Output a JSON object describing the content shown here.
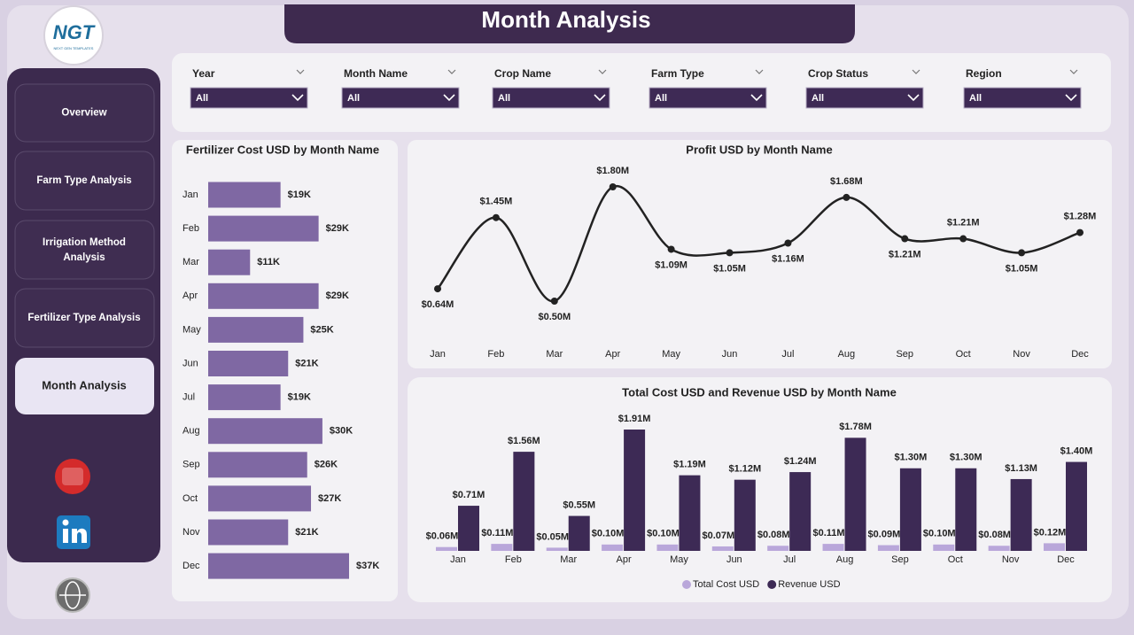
{
  "header": {
    "logo": "NGT",
    "logo_sub": "NEXT GEN TEMPLATES",
    "title": "Month Analysis"
  },
  "nav": [
    "Overview",
    "Farm Type Analysis",
    "Irrigation Method Analysis",
    "Fertilizer Type Analysis",
    "Month Analysis"
  ],
  "active_nav": 4,
  "filters": [
    {
      "label": "Year",
      "value": "All"
    },
    {
      "label": "Month Name",
      "value": "All"
    },
    {
      "label": "Crop Name",
      "value": "All"
    },
    {
      "label": "Farm Type",
      "value": "All"
    },
    {
      "label": "Crop Status",
      "value": "All"
    },
    {
      "label": "Region",
      "value": "All"
    }
  ],
  "chart_data": [
    {
      "type": "hbar",
      "title": "Fertilizer Cost USD by Month Name",
      "categories": [
        "Jan",
        "Feb",
        "Mar",
        "Apr",
        "May",
        "Jun",
        "Jul",
        "Aug",
        "Sep",
        "Oct",
        "Nov",
        "Dec"
      ],
      "values": [
        19000,
        29000,
        11000,
        29000,
        25000,
        21000,
        19000,
        30000,
        26000,
        27000,
        21000,
        37000
      ],
      "value_labels": [
        "$19K",
        "$29K",
        "$11K",
        "$29K",
        "$25K",
        "$21K",
        "$19K",
        "$30K",
        "$26K",
        "$27K",
        "$21K",
        "$37K"
      ],
      "color": "#7f68a3"
    },
    {
      "type": "line",
      "title": "Profit USD by Month Name",
      "categories": [
        "Jan",
        "Feb",
        "Mar",
        "Apr",
        "May",
        "Jun",
        "Jul",
        "Aug",
        "Sep",
        "Oct",
        "Nov",
        "Dec"
      ],
      "values": [
        640000,
        1450000,
        500000,
        1800000,
        1090000,
        1050000,
        1160000,
        1680000,
        1210000,
        1210000,
        1050000,
        1280000
      ],
      "value_labels": [
        "$0.64M",
        "$1.45M",
        "$0.50M",
        "$1.80M",
        "$1.09M",
        "$1.05M",
        "$1.16M",
        "$1.68M",
        "$1.21M",
        "$1.21M",
        "$1.05M",
        "$1.28M"
      ],
      "color": "#222222"
    },
    {
      "type": "grouped_bar",
      "title": "Total Cost USD and Revenue USD by Month Name",
      "categories": [
        "Jan",
        "Feb",
        "Mar",
        "Apr",
        "May",
        "Jun",
        "Jul",
        "Aug",
        "Sep",
        "Oct",
        "Nov",
        "Dec"
      ],
      "series": [
        {
          "name": "Total Cost USD",
          "color": "#b9a7da",
          "values": [
            60000,
            110000,
            50000,
            100000,
            100000,
            70000,
            80000,
            110000,
            90000,
            100000,
            80000,
            120000
          ],
          "value_labels": [
            "$0.06M",
            "$0.11M",
            "$0.05M",
            "$0.10M",
            "$0.10M",
            "$0.07M",
            "$0.08M",
            "$0.11M",
            "$0.09M",
            "$0.10M",
            "$0.08M",
            "$0.12M"
          ]
        },
        {
          "name": "Revenue USD",
          "color": "#3d2a55",
          "values": [
            710000,
            1560000,
            550000,
            1910000,
            1190000,
            1120000,
            1240000,
            1780000,
            1300000,
            1300000,
            1130000,
            1400000
          ],
          "value_labels": [
            "$0.71M",
            "$1.56M",
            "$0.55M",
            "$1.91M",
            "$1.19M",
            "$1.12M",
            "$1.24M",
            "$1.78M",
            "$1.30M",
            "$1.30M",
            "$1.13M",
            "$1.40M"
          ]
        }
      ],
      "legend": "bottom"
    }
  ]
}
